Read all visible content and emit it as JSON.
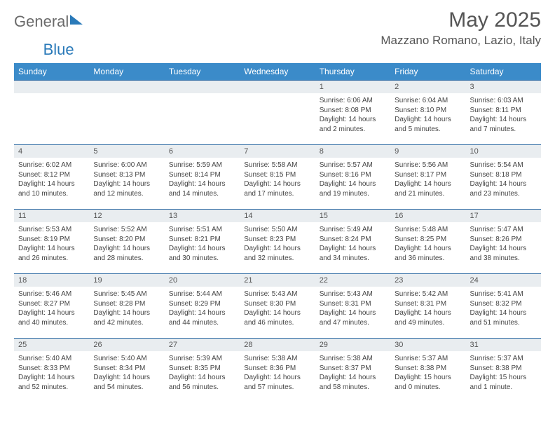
{
  "logo": {
    "general": "General",
    "blue": "Blue"
  },
  "title": "May 2025",
  "location": "Mazzano Romano, Lazio, Italy",
  "colors": {
    "header_bg": "#3b8bc9",
    "header_text": "#ffffff",
    "daynum_bg": "#e9edf0",
    "row_border": "#2d6aa3",
    "logo_blue": "#2a7ab9",
    "logo_gray": "#6a6a6a"
  },
  "day_headers": [
    "Sunday",
    "Monday",
    "Tuesday",
    "Wednesday",
    "Thursday",
    "Friday",
    "Saturday"
  ],
  "weeks": [
    [
      {
        "empty": true
      },
      {
        "empty": true
      },
      {
        "empty": true
      },
      {
        "empty": true
      },
      {
        "num": "1",
        "sunrise": "6:06 AM",
        "sunset": "8:08 PM",
        "daylight": "14 hours and 2 minutes."
      },
      {
        "num": "2",
        "sunrise": "6:04 AM",
        "sunset": "8:10 PM",
        "daylight": "14 hours and 5 minutes."
      },
      {
        "num": "3",
        "sunrise": "6:03 AM",
        "sunset": "8:11 PM",
        "daylight": "14 hours and 7 minutes."
      }
    ],
    [
      {
        "num": "4",
        "sunrise": "6:02 AM",
        "sunset": "8:12 PM",
        "daylight": "14 hours and 10 minutes."
      },
      {
        "num": "5",
        "sunrise": "6:00 AM",
        "sunset": "8:13 PM",
        "daylight": "14 hours and 12 minutes."
      },
      {
        "num": "6",
        "sunrise": "5:59 AM",
        "sunset": "8:14 PM",
        "daylight": "14 hours and 14 minutes."
      },
      {
        "num": "7",
        "sunrise": "5:58 AM",
        "sunset": "8:15 PM",
        "daylight": "14 hours and 17 minutes."
      },
      {
        "num": "8",
        "sunrise": "5:57 AM",
        "sunset": "8:16 PM",
        "daylight": "14 hours and 19 minutes."
      },
      {
        "num": "9",
        "sunrise": "5:56 AM",
        "sunset": "8:17 PM",
        "daylight": "14 hours and 21 minutes."
      },
      {
        "num": "10",
        "sunrise": "5:54 AM",
        "sunset": "8:18 PM",
        "daylight": "14 hours and 23 minutes."
      }
    ],
    [
      {
        "num": "11",
        "sunrise": "5:53 AM",
        "sunset": "8:19 PM",
        "daylight": "14 hours and 26 minutes."
      },
      {
        "num": "12",
        "sunrise": "5:52 AM",
        "sunset": "8:20 PM",
        "daylight": "14 hours and 28 minutes."
      },
      {
        "num": "13",
        "sunrise": "5:51 AM",
        "sunset": "8:21 PM",
        "daylight": "14 hours and 30 minutes."
      },
      {
        "num": "14",
        "sunrise": "5:50 AM",
        "sunset": "8:23 PM",
        "daylight": "14 hours and 32 minutes."
      },
      {
        "num": "15",
        "sunrise": "5:49 AM",
        "sunset": "8:24 PM",
        "daylight": "14 hours and 34 minutes."
      },
      {
        "num": "16",
        "sunrise": "5:48 AM",
        "sunset": "8:25 PM",
        "daylight": "14 hours and 36 minutes."
      },
      {
        "num": "17",
        "sunrise": "5:47 AM",
        "sunset": "8:26 PM",
        "daylight": "14 hours and 38 minutes."
      }
    ],
    [
      {
        "num": "18",
        "sunrise": "5:46 AM",
        "sunset": "8:27 PM",
        "daylight": "14 hours and 40 minutes."
      },
      {
        "num": "19",
        "sunrise": "5:45 AM",
        "sunset": "8:28 PM",
        "daylight": "14 hours and 42 minutes."
      },
      {
        "num": "20",
        "sunrise": "5:44 AM",
        "sunset": "8:29 PM",
        "daylight": "14 hours and 44 minutes."
      },
      {
        "num": "21",
        "sunrise": "5:43 AM",
        "sunset": "8:30 PM",
        "daylight": "14 hours and 46 minutes."
      },
      {
        "num": "22",
        "sunrise": "5:43 AM",
        "sunset": "8:31 PM",
        "daylight": "14 hours and 47 minutes."
      },
      {
        "num": "23",
        "sunrise": "5:42 AM",
        "sunset": "8:31 PM",
        "daylight": "14 hours and 49 minutes."
      },
      {
        "num": "24",
        "sunrise": "5:41 AM",
        "sunset": "8:32 PM",
        "daylight": "14 hours and 51 minutes."
      }
    ],
    [
      {
        "num": "25",
        "sunrise": "5:40 AM",
        "sunset": "8:33 PM",
        "daylight": "14 hours and 52 minutes."
      },
      {
        "num": "26",
        "sunrise": "5:40 AM",
        "sunset": "8:34 PM",
        "daylight": "14 hours and 54 minutes."
      },
      {
        "num": "27",
        "sunrise": "5:39 AM",
        "sunset": "8:35 PM",
        "daylight": "14 hours and 56 minutes."
      },
      {
        "num": "28",
        "sunrise": "5:38 AM",
        "sunset": "8:36 PM",
        "daylight": "14 hours and 57 minutes."
      },
      {
        "num": "29",
        "sunrise": "5:38 AM",
        "sunset": "8:37 PM",
        "daylight": "14 hours and 58 minutes."
      },
      {
        "num": "30",
        "sunrise": "5:37 AM",
        "sunset": "8:38 PM",
        "daylight": "15 hours and 0 minutes."
      },
      {
        "num": "31",
        "sunrise": "5:37 AM",
        "sunset": "8:38 PM",
        "daylight": "15 hours and 1 minute."
      }
    ]
  ],
  "labels": {
    "sunrise": "Sunrise: ",
    "sunset": "Sunset: ",
    "daylight": "Daylight: "
  }
}
